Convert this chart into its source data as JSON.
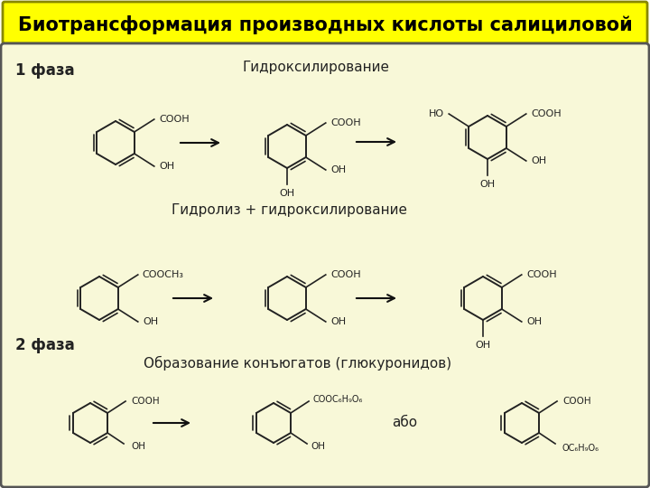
{
  "title": "Биотрансформация производных кислоты салициловой",
  "title_bg": "#ffff00",
  "title_fg": "#000000",
  "bg_color": "#fffff5",
  "panel_bg": "#f8f8d8",
  "panel_edge": "#555555",
  "line_color": "#222222",
  "phase1_label": "1 фаза",
  "phase2_label": "2 фаза",
  "reaction1_label": "Гидроксилирование",
  "reaction2_label": "Гидролиз + гидроксилирование",
  "reaction3_label": "Образование конъюгатов (глюкуронидов)",
  "also_label": "або",
  "arrow_color": "#111111"
}
